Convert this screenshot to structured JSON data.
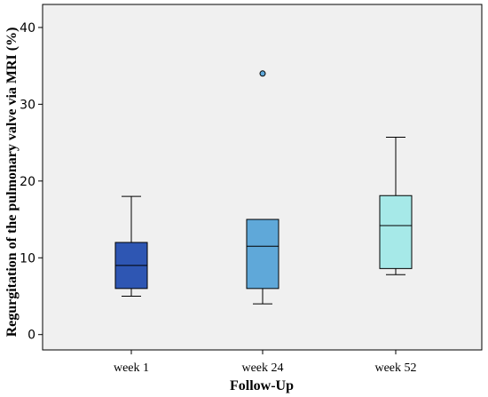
{
  "chart_data": {
    "type": "box",
    "title": "",
    "xlabel": "Follow-Up",
    "ylabel": "Regurgitation of the pulmonary valve via MRI (%)",
    "ylim": [
      -2,
      43
    ],
    "yticks": [
      0,
      10,
      20,
      30,
      40
    ],
    "grid": false,
    "categories": [
      "week 1",
      "week 24",
      "week 52"
    ],
    "boxes": [
      {
        "category": "week 1",
        "whisker_low": 5,
        "q1": 6,
        "median": 9,
        "q3": 12,
        "whisker_high": 18,
        "outliers": [],
        "color": "#2e56b3"
      },
      {
        "category": "week 24",
        "whisker_low": 4,
        "q1": 6,
        "median": 11.5,
        "q3": 15,
        "whisker_high": 15,
        "outliers": [
          34
        ],
        "color": "#5fa8d9"
      },
      {
        "category": "week 52",
        "whisker_low": 7.8,
        "q1": 8.6,
        "median": 14.2,
        "q3": 18.1,
        "whisker_high": 25.7,
        "outliers": [],
        "color": "#a6e9e8"
      }
    ],
    "colors": {
      "plot_background": "#f0f0f0",
      "outlier_fill": "#5fa8d9"
    }
  }
}
